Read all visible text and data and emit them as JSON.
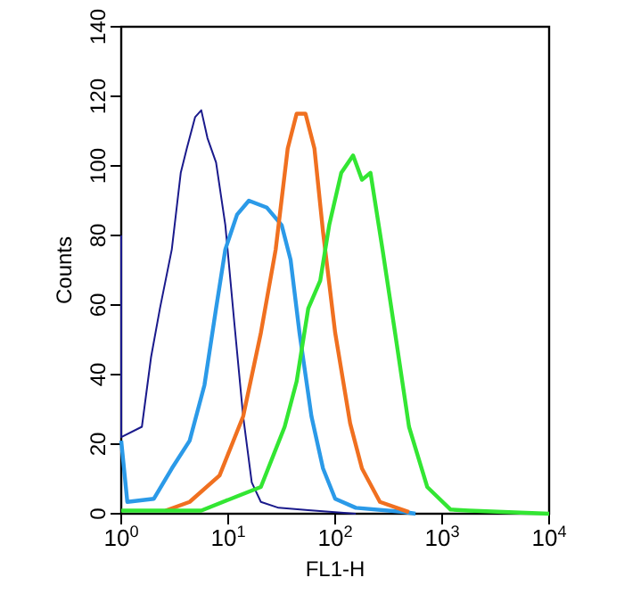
{
  "chart_data": {
    "type": "line",
    "xlabel": "FL1-H",
    "ylabel": "Counts",
    "log": "x",
    "xlim": [
      1,
      10000
    ],
    "ylim": [
      0,
      140
    ],
    "xticks": [
      {
        "value": 1,
        "label": "10$^{0}$"
      },
      {
        "value": 10,
        "label": "10$^{1}$"
      },
      {
        "value": 100,
        "label": "10$^{2}$"
      },
      {
        "value": 1000,
        "label": "10$^{3}$"
      },
      {
        "value": 10000,
        "label": "10$^{4}$"
      }
    ],
    "yticks": [
      0,
      20,
      40,
      60,
      80,
      100,
      120,
      140
    ],
    "marker": "none",
    "line_style": "solid",
    "series": [
      {
        "color": "#1a1a8c",
        "x": [
          1,
          1,
          1.56,
          1.9,
          2.3,
          2.97,
          3.6,
          4.1,
          4.9,
          5.6,
          6.4,
          7.7,
          9.4,
          11.4,
          13.8,
          16.6,
          20.2,
          29.6,
          56,
          156
        ],
        "values": [
          80,
          22,
          25,
          45,
          59,
          76,
          98,
          105,
          114,
          116,
          108,
          101,
          83,
          55,
          28,
          9,
          3.4,
          1.7,
          1,
          0
        ]
      },
      {
        "color": "#2b9ae8",
        "x": [
          1,
          1.14,
          2.02,
          2.97,
          4.36,
          6,
          7.7,
          9.4,
          12.1,
          15.6,
          23,
          31.6,
          38.3,
          46.4,
          60,
          77,
          100,
          156,
          437,
          564
        ],
        "values": [
          21,
          3.4,
          4.3,
          13,
          21,
          37,
          59,
          76,
          86,
          90,
          88,
          83,
          73,
          52,
          28,
          13,
          4.3,
          1.7,
          0.5,
          0
        ]
      },
      {
        "color": "#f07020",
        "x": [
          2.6,
          4.36,
          8.3,
          13.8,
          20.2,
          27.8,
          36,
          43.6,
          52.8,
          64,
          77,
          100,
          138,
          178,
          262,
          490
        ],
        "values": [
          0.9,
          3.4,
          11,
          28,
          52,
          76,
          105,
          115,
          115,
          105,
          81,
          52,
          26,
          13,
          3.4,
          0.5
        ]
      },
      {
        "color": "#33e633",
        "x": [
          1,
          5.6,
          12.1,
          20.2,
          33.7,
          43.6,
          56,
          72.5,
          88,
          114,
          147,
          178,
          214,
          277,
          363,
          490,
          725,
          1200,
          1780,
          10000
        ],
        "values": [
          0.9,
          0.9,
          5,
          7.7,
          25,
          38,
          59,
          67,
          83,
          98,
          103,
          96,
          98,
          76,
          52,
          25,
          7.7,
          1.2,
          0.9,
          0
        ]
      }
    ]
  }
}
